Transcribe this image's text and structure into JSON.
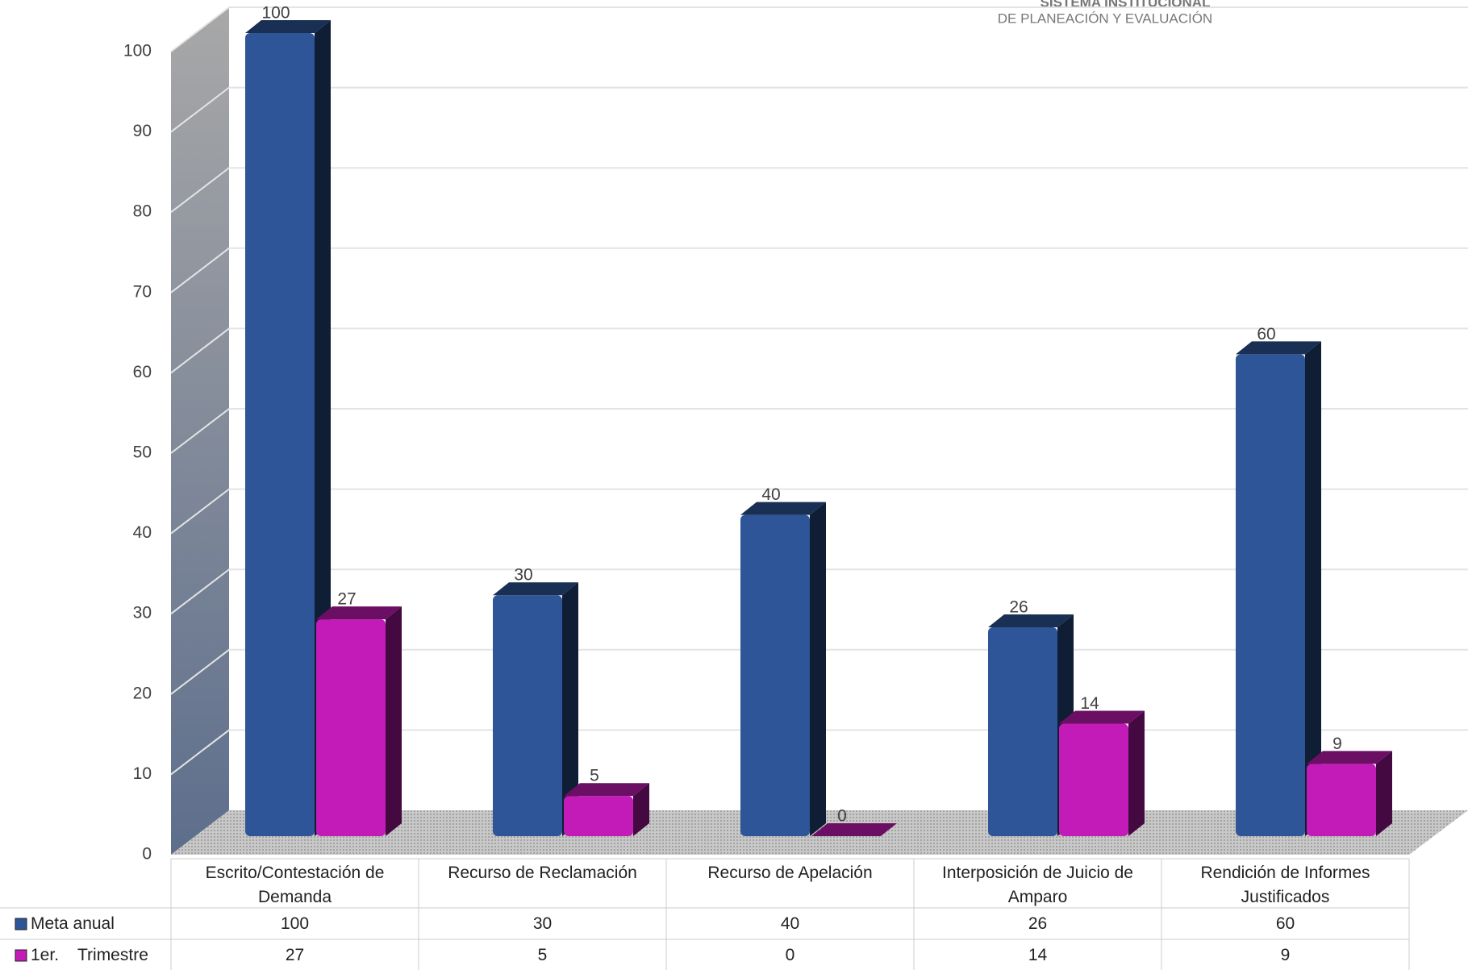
{
  "logo": {
    "line1": "SISTEMA INSTITUCIONAL",
    "line2": "DE PLANEACIÓN Y EVALUACIÓN"
  },
  "chart_data": {
    "type": "bar3d",
    "categories": [
      "Escrito/Contestación de Demanda",
      "Recurso de Reclamación",
      "Recurso de Apelación",
      "Interposición de Juicio de Amparo",
      "Rendición de Informes Justificados"
    ],
    "series": [
      {
        "name": "Meta anual",
        "color": "#2e5597",
        "values": [
          100,
          30,
          40,
          26,
          60
        ]
      },
      {
        "name": "1er.    Trimestre",
        "color": "#c21bb8",
        "values": [
          27,
          5,
          0,
          14,
          9
        ]
      }
    ],
    "ylim": [
      0,
      100
    ],
    "yticks": [
      0,
      10,
      20,
      30,
      40,
      50,
      60,
      70,
      80,
      90,
      100
    ],
    "grid": true
  }
}
